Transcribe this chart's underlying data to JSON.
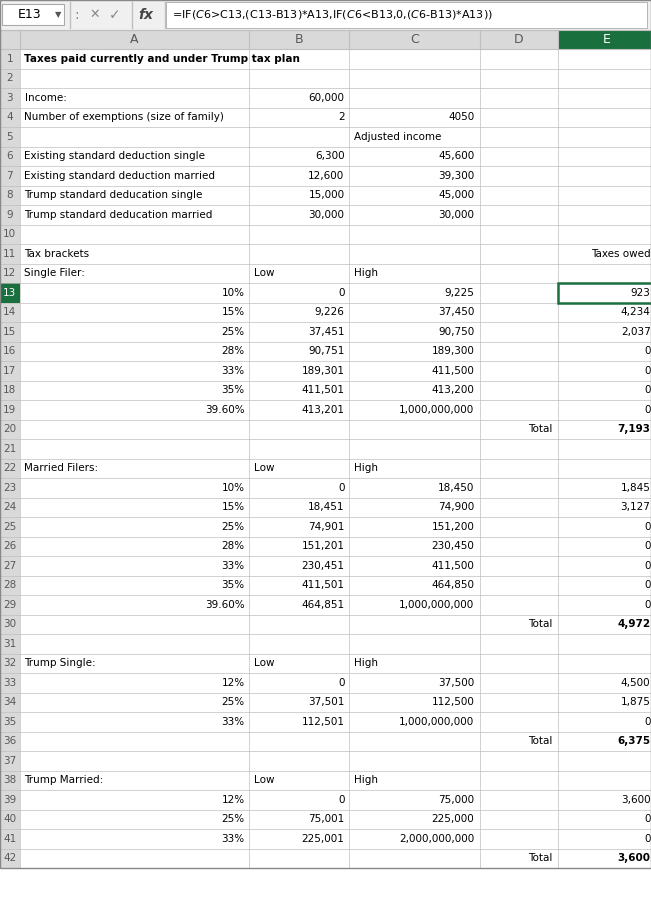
{
  "formula_bar_cell": "E13",
  "formula_bar_formula": "=IF($C$6>C13,(C13-B13)*A13,IF($C$6<B13,0,($C$6-B13)*A13))",
  "rows": [
    {
      "row": 1,
      "cells": [
        {
          "col": "A",
          "text": "Taxes paid currently and under Trump tax plan",
          "bold": true,
          "align": "left"
        }
      ]
    },
    {
      "row": 2,
      "cells": []
    },
    {
      "row": 3,
      "cells": [
        {
          "col": "A",
          "text": "Income:",
          "align": "left"
        },
        {
          "col": "B",
          "text": "60,000",
          "align": "right"
        }
      ]
    },
    {
      "row": 4,
      "cells": [
        {
          "col": "A",
          "text": "Number of exemptions (size of family)",
          "align": "left"
        },
        {
          "col": "B",
          "text": "2",
          "align": "right"
        },
        {
          "col": "C",
          "text": "4050",
          "align": "right"
        }
      ]
    },
    {
      "row": 5,
      "cells": [
        {
          "col": "C",
          "text": "Adjusted income",
          "align": "left"
        }
      ]
    },
    {
      "row": 6,
      "cells": [
        {
          "col": "A",
          "text": "Existing standard deduction single",
          "align": "left"
        },
        {
          "col": "B",
          "text": "6,300",
          "align": "right"
        },
        {
          "col": "C",
          "text": "45,600",
          "align": "right"
        }
      ]
    },
    {
      "row": 7,
      "cells": [
        {
          "col": "A",
          "text": "Existing standard deduction married",
          "align": "left"
        },
        {
          "col": "B",
          "text": "12,600",
          "align": "right"
        },
        {
          "col": "C",
          "text": "39,300",
          "align": "right"
        }
      ]
    },
    {
      "row": 8,
      "cells": [
        {
          "col": "A",
          "text": "Trump standard deducation single",
          "align": "left"
        },
        {
          "col": "B",
          "text": "15,000",
          "align": "right"
        },
        {
          "col": "C",
          "text": "45,000",
          "align": "right"
        }
      ]
    },
    {
      "row": 9,
      "cells": [
        {
          "col": "A",
          "text": "Trump standard deducation married",
          "align": "left"
        },
        {
          "col": "B",
          "text": "30,000",
          "align": "right"
        },
        {
          "col": "C",
          "text": "30,000",
          "align": "right"
        }
      ]
    },
    {
      "row": 10,
      "cells": []
    },
    {
      "row": 11,
      "cells": [
        {
          "col": "A",
          "text": "Tax brackets",
          "align": "left"
        },
        {
          "col": "E",
          "text": "Taxes owed",
          "align": "right"
        }
      ]
    },
    {
      "row": 12,
      "cells": [
        {
          "col": "A",
          "text": "Single Filer:",
          "align": "left"
        },
        {
          "col": "B",
          "text": "Low",
          "align": "left"
        },
        {
          "col": "C",
          "text": "High",
          "align": "left"
        }
      ]
    },
    {
      "row": 13,
      "cells": [
        {
          "col": "A",
          "text": "10%",
          "align": "right"
        },
        {
          "col": "B",
          "text": "0",
          "align": "right"
        },
        {
          "col": "C",
          "text": "9,225",
          "align": "right"
        },
        {
          "col": "E",
          "text": "923",
          "align": "right",
          "highlight": true
        }
      ]
    },
    {
      "row": 14,
      "cells": [
        {
          "col": "A",
          "text": "15%",
          "align": "right"
        },
        {
          "col": "B",
          "text": "9,226",
          "align": "right"
        },
        {
          "col": "C",
          "text": "37,450",
          "align": "right"
        },
        {
          "col": "E",
          "text": "4,234",
          "align": "right"
        }
      ]
    },
    {
      "row": 15,
      "cells": [
        {
          "col": "A",
          "text": "25%",
          "align": "right"
        },
        {
          "col": "B",
          "text": "37,451",
          "align": "right"
        },
        {
          "col": "C",
          "text": "90,750",
          "align": "right"
        },
        {
          "col": "E",
          "text": "2,037",
          "align": "right"
        }
      ]
    },
    {
      "row": 16,
      "cells": [
        {
          "col": "A",
          "text": "28%",
          "align": "right"
        },
        {
          "col": "B",
          "text": "90,751",
          "align": "right"
        },
        {
          "col": "C",
          "text": "189,300",
          "align": "right"
        },
        {
          "col": "E",
          "text": "0",
          "align": "right"
        }
      ]
    },
    {
      "row": 17,
      "cells": [
        {
          "col": "A",
          "text": "33%",
          "align": "right"
        },
        {
          "col": "B",
          "text": "189,301",
          "align": "right"
        },
        {
          "col": "C",
          "text": "411,500",
          "align": "right"
        },
        {
          "col": "E",
          "text": "0",
          "align": "right"
        }
      ]
    },
    {
      "row": 18,
      "cells": [
        {
          "col": "A",
          "text": "35%",
          "align": "right"
        },
        {
          "col": "B",
          "text": "411,501",
          "align": "right"
        },
        {
          "col": "C",
          "text": "413,200",
          "align": "right"
        },
        {
          "col": "E",
          "text": "0",
          "align": "right"
        }
      ]
    },
    {
      "row": 19,
      "cells": [
        {
          "col": "A",
          "text": "39.60%",
          "align": "right"
        },
        {
          "col": "B",
          "text": "413,201",
          "align": "right"
        },
        {
          "col": "C",
          "text": "1,000,000,000",
          "align": "right"
        },
        {
          "col": "E",
          "text": "0",
          "align": "right"
        }
      ]
    },
    {
      "row": 20,
      "cells": [
        {
          "col": "D",
          "text": "Total",
          "align": "right"
        },
        {
          "col": "E",
          "text": "7,193",
          "align": "right",
          "bold": true
        }
      ]
    },
    {
      "row": 21,
      "cells": []
    },
    {
      "row": 22,
      "cells": [
        {
          "col": "A",
          "text": "Married Filers:",
          "align": "left"
        },
        {
          "col": "B",
          "text": "Low",
          "align": "left"
        },
        {
          "col": "C",
          "text": "High",
          "align": "left"
        }
      ]
    },
    {
      "row": 23,
      "cells": [
        {
          "col": "A",
          "text": "10%",
          "align": "right"
        },
        {
          "col": "B",
          "text": "0",
          "align": "right"
        },
        {
          "col": "C",
          "text": "18,450",
          "align": "right"
        },
        {
          "col": "E",
          "text": "1,845",
          "align": "right"
        }
      ]
    },
    {
      "row": 24,
      "cells": [
        {
          "col": "A",
          "text": "15%",
          "align": "right"
        },
        {
          "col": "B",
          "text": "18,451",
          "align": "right"
        },
        {
          "col": "C",
          "text": "74,900",
          "align": "right"
        },
        {
          "col": "E",
          "text": "3,127",
          "align": "right"
        }
      ]
    },
    {
      "row": 25,
      "cells": [
        {
          "col": "A",
          "text": "25%",
          "align": "right"
        },
        {
          "col": "B",
          "text": "74,901",
          "align": "right"
        },
        {
          "col": "C",
          "text": "151,200",
          "align": "right"
        },
        {
          "col": "E",
          "text": "0",
          "align": "right"
        }
      ]
    },
    {
      "row": 26,
      "cells": [
        {
          "col": "A",
          "text": "28%",
          "align": "right"
        },
        {
          "col": "B",
          "text": "151,201",
          "align": "right"
        },
        {
          "col": "C",
          "text": "230,450",
          "align": "right"
        },
        {
          "col": "E",
          "text": "0",
          "align": "right"
        }
      ]
    },
    {
      "row": 27,
      "cells": [
        {
          "col": "A",
          "text": "33%",
          "align": "right"
        },
        {
          "col": "B",
          "text": "230,451",
          "align": "right"
        },
        {
          "col": "C",
          "text": "411,500",
          "align": "right"
        },
        {
          "col": "E",
          "text": "0",
          "align": "right"
        }
      ]
    },
    {
      "row": 28,
      "cells": [
        {
          "col": "A",
          "text": "35%",
          "align": "right"
        },
        {
          "col": "B",
          "text": "411,501",
          "align": "right"
        },
        {
          "col": "C",
          "text": "464,850",
          "align": "right"
        },
        {
          "col": "E",
          "text": "0",
          "align": "right"
        }
      ]
    },
    {
      "row": 29,
      "cells": [
        {
          "col": "A",
          "text": "39.60%",
          "align": "right"
        },
        {
          "col": "B",
          "text": "464,851",
          "align": "right"
        },
        {
          "col": "C",
          "text": "1,000,000,000",
          "align": "right"
        },
        {
          "col": "E",
          "text": "0",
          "align": "right"
        }
      ]
    },
    {
      "row": 30,
      "cells": [
        {
          "col": "D",
          "text": "Total",
          "align": "right"
        },
        {
          "col": "E",
          "text": "4,972",
          "align": "right",
          "bold": true
        }
      ]
    },
    {
      "row": 31,
      "cells": []
    },
    {
      "row": 32,
      "cells": [
        {
          "col": "A",
          "text": "Trump Single:",
          "align": "left"
        },
        {
          "col": "B",
          "text": "Low",
          "align": "left"
        },
        {
          "col": "C",
          "text": "High",
          "align": "left"
        }
      ]
    },
    {
      "row": 33,
      "cells": [
        {
          "col": "A",
          "text": "12%",
          "align": "right"
        },
        {
          "col": "B",
          "text": "0",
          "align": "right"
        },
        {
          "col": "C",
          "text": "37,500",
          "align": "right"
        },
        {
          "col": "E",
          "text": "4,500",
          "align": "right"
        }
      ]
    },
    {
      "row": 34,
      "cells": [
        {
          "col": "A",
          "text": "25%",
          "align": "right"
        },
        {
          "col": "B",
          "text": "37,501",
          "align": "right"
        },
        {
          "col": "C",
          "text": "112,500",
          "align": "right"
        },
        {
          "col": "E",
          "text": "1,875",
          "align": "right"
        }
      ]
    },
    {
      "row": 35,
      "cells": [
        {
          "col": "A",
          "text": "33%",
          "align": "right"
        },
        {
          "col": "B",
          "text": "112,501",
          "align": "right"
        },
        {
          "col": "C",
          "text": "1,000,000,000",
          "align": "right"
        },
        {
          "col": "E",
          "text": "0",
          "align": "right"
        }
      ]
    },
    {
      "row": 36,
      "cells": [
        {
          "col": "D",
          "text": "Total",
          "align": "right"
        },
        {
          "col": "E",
          "text": "6,375",
          "align": "right",
          "bold": true
        }
      ]
    },
    {
      "row": 37,
      "cells": []
    },
    {
      "row": 38,
      "cells": [
        {
          "col": "A",
          "text": "Trump Married:",
          "align": "left"
        },
        {
          "col": "B",
          "text": "Low",
          "align": "left"
        },
        {
          "col": "C",
          "text": "High",
          "align": "left"
        }
      ]
    },
    {
      "row": 39,
      "cells": [
        {
          "col": "A",
          "text": "12%",
          "align": "right"
        },
        {
          "col": "B",
          "text": "0",
          "align": "right"
        },
        {
          "col": "C",
          "text": "75,000",
          "align": "right"
        },
        {
          "col": "E",
          "text": "3,600",
          "align": "right"
        }
      ]
    },
    {
      "row": 40,
      "cells": [
        {
          "col": "A",
          "text": "25%",
          "align": "right"
        },
        {
          "col": "B",
          "text": "75,001",
          "align": "right"
        },
        {
          "col": "C",
          "text": "225,000",
          "align": "right"
        },
        {
          "col": "E",
          "text": "0",
          "align": "right"
        }
      ]
    },
    {
      "row": 41,
      "cells": [
        {
          "col": "A",
          "text": "33%",
          "align": "right"
        },
        {
          "col": "B",
          "text": "225,001",
          "align": "right"
        },
        {
          "col": "C",
          "text": "2,000,000,000",
          "align": "right"
        },
        {
          "col": "E",
          "text": "0",
          "align": "right"
        }
      ]
    },
    {
      "row": 42,
      "cells": [
        {
          "col": "D",
          "text": "Total",
          "align": "right"
        },
        {
          "col": "E",
          "text": "3,600",
          "align": "right",
          "bold": true
        }
      ]
    }
  ],
  "grid_color": "#bfbfbf",
  "header_bg": "#d9d9d9",
  "green_dark": "#196f3d",
  "text_color": "#000000",
  "header_text_color": "#595959",
  "font_size": 7.5
}
